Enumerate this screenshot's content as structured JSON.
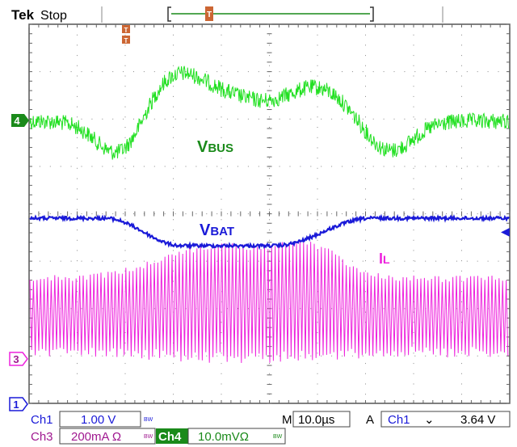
{
  "header": {
    "brand": "Tek",
    "run_state": "Stop",
    "trigger_marker": "T"
  },
  "traces": [
    {
      "id": "ch4",
      "marker": "4",
      "label": "VBUS",
      "label_main": "V",
      "label_sub": "BUS",
      "color": "#22e022"
    },
    {
      "id": "bat",
      "label": "VBAT",
      "label_main": "V",
      "label_sub": "BAT",
      "color": "#1a1ad8"
    },
    {
      "id": "ch3",
      "marker": "3",
      "label": "IL",
      "label_main": "I",
      "label_sub": "L",
      "color": "#ee22dd"
    },
    {
      "id": "ch1",
      "marker": "1",
      "color": "#1a1ad8"
    }
  ],
  "trigger_level_marker": "◀",
  "readout": {
    "ch1_name": "Ch1",
    "ch1_scale": "1.00 V",
    "ch1_bw": "BW",
    "ch3_name": "Ch3",
    "ch3_scale": "200mA Ω",
    "ch3_bw": "BW",
    "ch4_name": "Ch4",
    "ch4_scale": "10.0mVΩ",
    "ch4_bw": "BW",
    "m_label": "M",
    "timebase": "10.0µs",
    "a_label": "A",
    "trig_source": "Ch1",
    "trig_slope": "⌄",
    "trig_level": "3.64 V"
  },
  "colors": {
    "grid": "#777777",
    "ch4": "#22e022",
    "ch4_dark": "#1a8a1a",
    "vbat": "#1a1ad8",
    "il": "#ee22dd",
    "trigger": "#cc6633",
    "readout_bg": "#ffffff"
  }
}
